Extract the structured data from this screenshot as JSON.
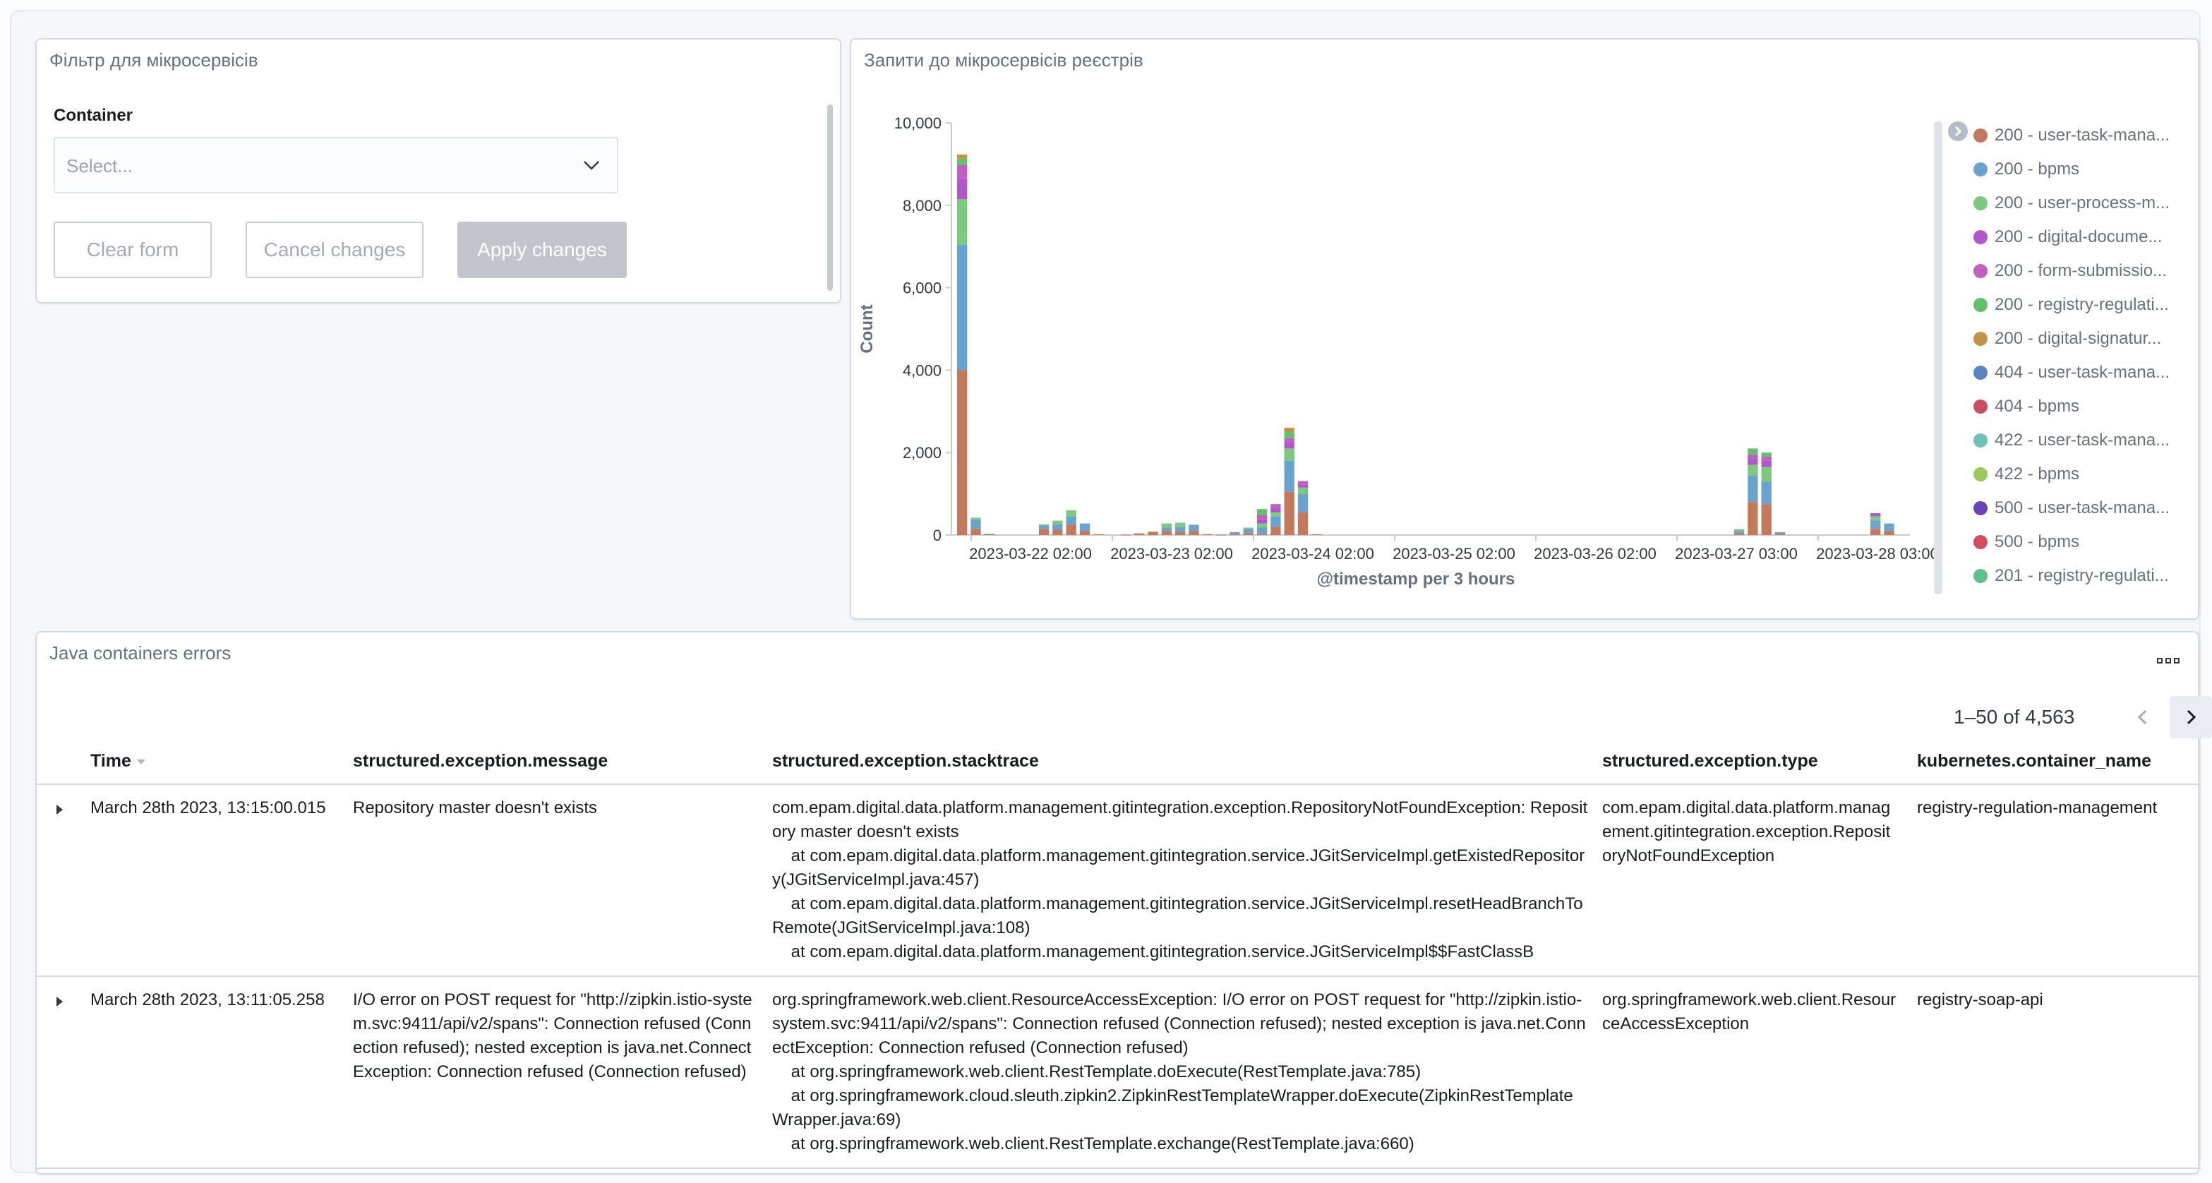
{
  "filter_panel": {
    "title": "Фільтр для мікросервісів",
    "container_label": "Container",
    "select_placeholder": "Select...",
    "clear_label": "Clear form",
    "cancel_label": "Cancel changes",
    "apply_label": "Apply changes"
  },
  "chart_panel": {
    "title": "Запити до мікросервісів реєстрів",
    "icons": {
      "legend_toggle": "chevron-right-icon",
      "select_chevron": "chevron-down-icon"
    }
  },
  "chart_data": {
    "type": "bar",
    "stacked": true,
    "title": "Запити до мікросервісів реєстрів",
    "xlabel": "@timestamp per 3 hours",
    "ylabel": "Count",
    "ylim": [
      0,
      10000
    ],
    "yticks": [
      "0",
      "2,000",
      "4,000",
      "6,000",
      "8,000",
      "10,000"
    ],
    "xticks": [
      "2023-03-22 02:00",
      "2023-03-23 02:00",
      "2023-03-24 02:00",
      "2023-03-25 02:00",
      "2023-03-26 02:00",
      "2023-03-27 03:00",
      "2023-03-28 03:00"
    ],
    "legend_position": "right",
    "grid": false,
    "series_colors": {
      "200 - user-task-mana...": "#c47a5a",
      "200 - bpms": "#6aa3d0",
      "200 - user-process-m...": "#7dc97d",
      "200 - digital-docume...": "#b058c9",
      "200 - form-submissio...": "#c25fc1",
      "200 - registry-regulati...": "#65c06a",
      "200 - digital-signatur...": "#c49349",
      "404 - user-task-mana...": "#5a83c4",
      "404 - bpms": "#c9505e",
      "422 - user-task-mana...": "#6ec2b8",
      "422 - bpms": "#98c95a",
      "500 - user-task-mana...": "#6a45b8",
      "500 - bpms": "#d04e60",
      "201 - registry-regulati...": "#5fbf8b"
    },
    "bars": [
      {
        "bucket": 0,
        "segments": [
          4000,
          3050,
          1100,
          500,
          330,
          150,
          100
        ]
      },
      {
        "bucket": 1,
        "segments": [
          150,
          220,
          50
        ]
      },
      {
        "bucket": 2,
        "segments": [
          20,
          10
        ]
      },
      {
        "bucket": 6,
        "segments": [
          150,
          80,
          30
        ]
      },
      {
        "bucket": 7,
        "segments": [
          120,
          150,
          80
        ]
      },
      {
        "bucket": 8,
        "segments": [
          250,
          200,
          150
        ]
      },
      {
        "bucket": 9,
        "segments": [
          100,
          180
        ]
      },
      {
        "bucket": 10,
        "segments": [
          20
        ]
      },
      {
        "bucket": 12,
        "segments": [
          10
        ]
      },
      {
        "bucket": 13,
        "segments": [
          40
        ]
      },
      {
        "bucket": 14,
        "segments": [
          80
        ]
      },
      {
        "bucket": 15,
        "segments": [
          100,
          80,
          100
        ]
      },
      {
        "bucket": 16,
        "segments": [
          80,
          120,
          100
        ]
      },
      {
        "bucket": 17,
        "segments": [
          100,
          150
        ]
      },
      {
        "bucket": 18,
        "segments": [
          20
        ]
      },
      {
        "bucket": 19,
        "segments": [
          10
        ]
      },
      {
        "bucket": 20,
        "segments": [
          30,
          40
        ]
      },
      {
        "bucket": 21,
        "segments": [
          50,
          100,
          30
        ]
      },
      {
        "bucket": 22,
        "segments": [
          30,
          150,
          100,
          100,
          100,
          150
        ]
      },
      {
        "bucket": 23,
        "segments": [
          200,
          250,
          100,
          100,
          100
        ]
      },
      {
        "bucket": 24,
        "segments": [
          1050,
          750,
          300,
          150,
          100,
          150,
          100
        ]
      },
      {
        "bucket": 25,
        "segments": [
          550,
          450,
          150,
          80,
          80
        ]
      },
      {
        "bucket": 26,
        "segments": [
          20
        ]
      },
      {
        "bucket": 57,
        "segments": [
          40,
          60,
          40
        ]
      },
      {
        "bucket": 58,
        "segments": [
          800,
          650,
          250,
          150,
          100,
          150
        ]
      },
      {
        "bucket": 59,
        "segments": [
          750,
          550,
          350,
          150,
          100,
          100
        ]
      },
      {
        "bucket": 60,
        "segments": [
          40,
          30
        ]
      },
      {
        "bucket": 67,
        "segments": [
          150,
          200,
          100,
          80
        ]
      },
      {
        "bucket": 68,
        "segments": [
          100,
          180
        ]
      }
    ],
    "legend": [
      "200 - user-task-mana...",
      "200 - bpms",
      "200 - user-process-m...",
      "200 - digital-docume...",
      "200 - form-submissio...",
      "200 - registry-regulati...",
      "200 - digital-signatur...",
      "404 - user-task-mana...",
      "404 - bpms",
      "422 - user-task-mana...",
      "422 - bpms",
      "500 - user-task-mana...",
      "500 - bpms",
      "201 - registry-regulati..."
    ]
  },
  "table_panel": {
    "title": "Java containers errors",
    "pagination": "1–50 of 4,563",
    "columns": [
      "Time",
      "structured.exception.message",
      "structured.exception.stacktrace",
      "structured.exception.type",
      "kubernetes.container_name"
    ],
    "rows": [
      {
        "time": "March 28th 2023, 13:15:00.015",
        "message": "Repository master doesn't exists",
        "stacktrace": "com.epam.digital.data.platform.management.gitintegration.exception.RepositoryNotFoundException: Repository master doesn't exists\n\tat com.epam.digital.data.platform.management.gitintegration.service.JGitServiceImpl.getExistedRepository(JGitServiceImpl.java:457)\n\tat com.epam.digital.data.platform.management.gitintegration.service.JGitServiceImpl.resetHeadBranchToRemote(JGitServiceImpl.java:108)\n\tat com.epam.digital.data.platform.management.gitintegration.service.JGitServiceImpl$$FastClassB",
        "type": "com.epam.digital.data.platform.management.gitintegration.exception.RepositoryNotFoundException",
        "container": "registry-regulation-management"
      },
      {
        "time": "March 28th 2023, 13:11:05.258",
        "message": "I/O error on POST request for \"http://zipkin.istio-system.svc:9411/api/v2/spans\": Connection refused (Connection refused); nested exception is java.net.ConnectException: Connection refused (Connection refused)",
        "stacktrace": "org.springframework.web.client.ResourceAccessException: I/O error on POST request for \"http://zipkin.istio-system.svc:9411/api/v2/spans\": Connection refused (Connection refused); nested exception is java.net.ConnectException: Connection refused (Connection refused)\n\tat org.springframework.web.client.RestTemplate.doExecute(RestTemplate.java:785)\n\tat org.springframework.cloud.sleuth.zipkin2.ZipkinRestTemplateWrapper.doExecute(ZipkinRestTemplateWrapper.java:69)\n\tat org.springframework.web.client.RestTemplate.exchange(RestTemplate.java:660)",
        "type": "org.springframework.web.client.ResourceAccessException",
        "container": "registry-soap-api"
      }
    ]
  }
}
